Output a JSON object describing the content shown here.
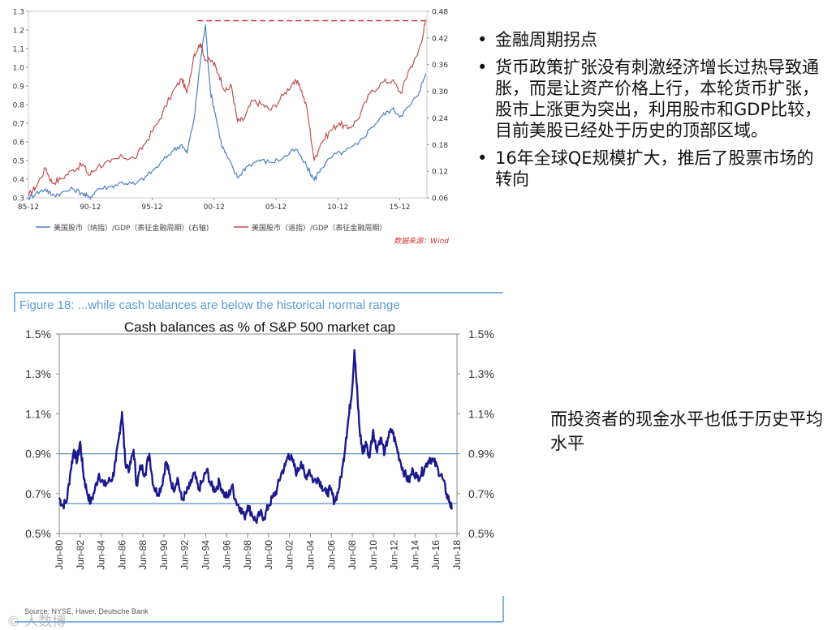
{
  "bullets": [
    "金融周期拐点",
    "货币政策扩张没有刺激经济增长过热导致通胀，而是让资产价格上行，本轮货币扩张，股市上涨更为突出，利用股市和GDP比较，目前美股已经处于历史的顶部区域。",
    "16年全球QE规模扩大，推后了股票市场的转向"
  ],
  "note": "而投资者的现金水平也低于历史平均水平",
  "watermark": "© 人数博",
  "chart_data": [
    {
      "type": "line",
      "title": "",
      "x_ticks": [
        "85-12",
        "90-12",
        "95-12",
        "00-12",
        "05-12",
        "10-12",
        "15-12"
      ],
      "left_axis": {
        "ticks": [
          "0.3",
          "0.4",
          "0.5",
          "0.6",
          "0.7",
          "0.8",
          "0.9",
          "1.0",
          "1.1",
          "1.2",
          "1.3"
        ],
        "ylim": [
          0.3,
          1.3
        ]
      },
      "right_axis": {
        "ticks": [
          "0.06",
          "0.12",
          "0.18",
          "0.24",
          "0.30",
          "0.36",
          "0.42",
          "0.48"
        ],
        "ylim": [
          0.06,
          0.48
        ]
      },
      "legend": [
        "美国股市（纳指）/GDP（表征金融周期）(右轴)",
        "美国股市（道指）/GDP（表征金融周期）"
      ],
      "legend_position": "bottom",
      "source": "数据来源：Wind",
      "reference_line": {
        "axis": "left",
        "value": 1.25,
        "style": "dashed",
        "color": "#d0312d"
      },
      "colors": {
        "nasdaq": "#4a7fc1",
        "dow": "#c0504d"
      },
      "series": [
        {
          "legend_index": 1,
          "color_key": "dow",
          "axis": "left",
          "points": [
            [
              1985.9,
              0.31
            ],
            [
              1986.5,
              0.36
            ],
            [
              1987.3,
              0.46
            ],
            [
              1987.8,
              0.38
            ],
            [
              1988.5,
              0.4
            ],
            [
              1989.5,
              0.45
            ],
            [
              1990.3,
              0.48
            ],
            [
              1990.8,
              0.42
            ],
            [
              1991.5,
              0.47
            ],
            [
              1992.5,
              0.49
            ],
            [
              1993.5,
              0.52
            ],
            [
              1994.5,
              0.51
            ],
            [
              1995.5,
              0.61
            ],
            [
              1996.5,
              0.72
            ],
            [
              1997.5,
              0.86
            ],
            [
              1998.3,
              0.94
            ],
            [
              1998.7,
              0.86
            ],
            [
              1999.3,
              1.07
            ],
            [
              1999.8,
              1.13
            ],
            [
              2000.2,
              1.04
            ],
            [
              2000.8,
              1.03
            ],
            [
              2001.3,
              0.96
            ],
            [
              2001.8,
              0.87
            ],
            [
              2002.3,
              0.9
            ],
            [
              2002.8,
              0.71
            ],
            [
              2003.3,
              0.72
            ],
            [
              2004.0,
              0.82
            ],
            [
              2004.8,
              0.8
            ],
            [
              2005.5,
              0.77
            ],
            [
              2006.5,
              0.85
            ],
            [
              2007.3,
              0.92
            ],
            [
              2007.8,
              0.91
            ],
            [
              2008.4,
              0.78
            ],
            [
              2009.0,
              0.5
            ],
            [
              2009.5,
              0.59
            ],
            [
              2010.3,
              0.66
            ],
            [
              2011.0,
              0.7
            ],
            [
              2011.7,
              0.67
            ],
            [
              2012.5,
              0.72
            ],
            [
              2013.5,
              0.86
            ],
            [
              2014.5,
              0.92
            ],
            [
              2015.3,
              0.93
            ],
            [
              2016.0,
              0.86
            ],
            [
              2016.6,
              0.98
            ],
            [
              2017.3,
              1.06
            ],
            [
              2017.8,
              1.18
            ],
            [
              2018.0,
              1.25
            ]
          ]
        },
        {
          "legend_index": 0,
          "color_key": "nasdaq",
          "axis": "right",
          "points": [
            [
              1985.9,
              0.06
            ],
            [
              1986.5,
              0.07
            ],
            [
              1987.3,
              0.08
            ],
            [
              1987.8,
              0.066
            ],
            [
              1988.5,
              0.07
            ],
            [
              1989.5,
              0.08
            ],
            [
              1990.3,
              0.07
            ],
            [
              1990.8,
              0.06
            ],
            [
              1991.5,
              0.08
            ],
            [
              1992.5,
              0.085
            ],
            [
              1993.5,
              0.095
            ],
            [
              1994.5,
              0.09
            ],
            [
              1995.5,
              0.11
            ],
            [
              1996.5,
              0.135
            ],
            [
              1997.5,
              0.165
            ],
            [
              1998.3,
              0.18
            ],
            [
              1998.7,
              0.16
            ],
            [
              1999.3,
              0.24
            ],
            [
              1999.8,
              0.37
            ],
            [
              2000.2,
              0.45
            ],
            [
              2000.6,
              0.3
            ],
            [
              2001.0,
              0.25
            ],
            [
              2001.5,
              0.18
            ],
            [
              2002.0,
              0.15
            ],
            [
              2002.8,
              0.105
            ],
            [
              2003.5,
              0.13
            ],
            [
              2004.5,
              0.145
            ],
            [
              2005.5,
              0.14
            ],
            [
              2006.5,
              0.15
            ],
            [
              2007.5,
              0.17
            ],
            [
              2008.4,
              0.13
            ],
            [
              2009.0,
              0.1
            ],
            [
              2009.5,
              0.125
            ],
            [
              2010.5,
              0.155
            ],
            [
              2011.5,
              0.165
            ],
            [
              2012.5,
              0.18
            ],
            [
              2013.5,
              0.215
            ],
            [
              2014.5,
              0.245
            ],
            [
              2015.3,
              0.26
            ],
            [
              2016.0,
              0.245
            ],
            [
              2016.8,
              0.27
            ],
            [
              2017.5,
              0.3
            ],
            [
              2018.0,
              0.34
            ]
          ]
        }
      ]
    },
    {
      "type": "line",
      "figure_label": "Figure 18: ...while cash balances are below the historical normal range",
      "title": "Cash balances as % of S&P 500 market cap",
      "y_ticks": [
        "1.5%",
        "1.3%",
        "1.1%",
        "0.9%",
        "0.7%",
        "0.5%"
      ],
      "ylim": [
        0.5,
        1.5
      ],
      "x_ticks": [
        "Jun-80",
        "Jun-82",
        "Jun-84",
        "Jun-86",
        "Jun-88",
        "Jun-90",
        "Jun-92",
        "Jun-94",
        "Jun-96",
        "Jun-98",
        "Jun-00",
        "Jun-02",
        "Jun-04",
        "Jun-06",
        "Jun-08",
        "Jun-10",
        "Jun-12",
        "Jun-14",
        "Jun-16",
        "Jun-18"
      ],
      "xlim": [
        1980.5,
        2018.5
      ],
      "reference_lines": [
        0.9,
        0.65
      ],
      "source": "Source: NYSE, Haver, Deutsche Bank",
      "colors": {
        "series": "#1a1a8c",
        "ref": "#5b8fc7",
        "frame": "#5b9bd5"
      },
      "series": [
        {
          "points": [
            [
              1980.5,
              0.68
            ],
            [
              1980.8,
              0.64
            ],
            [
              1981.2,
              0.66
            ],
            [
              1981.6,
              0.82
            ],
            [
              1981.9,
              0.92
            ],
            [
              1982.2,
              0.86
            ],
            [
              1982.5,
              0.96
            ],
            [
              1982.8,
              0.8
            ],
            [
              1983.1,
              0.72
            ],
            [
              1983.5,
              0.65
            ],
            [
              1983.9,
              0.72
            ],
            [
              1984.3,
              0.8
            ],
            [
              1984.8,
              0.74
            ],
            [
              1985.2,
              0.76
            ],
            [
              1985.6,
              0.78
            ],
            [
              1985.9,
              0.86
            ],
            [
              1986.2,
              0.98
            ],
            [
              1986.5,
              1.11
            ],
            [
              1986.8,
              0.86
            ],
            [
              1987.2,
              0.82
            ],
            [
              1987.6,
              0.92
            ],
            [
              1987.9,
              0.74
            ],
            [
              1988.3,
              0.84
            ],
            [
              1988.7,
              0.8
            ],
            [
              1989.1,
              0.9
            ],
            [
              1989.5,
              0.74
            ],
            [
              1989.9,
              0.7
            ],
            [
              1990.3,
              0.74
            ],
            [
              1990.7,
              0.86
            ],
            [
              1991.0,
              0.8
            ],
            [
              1991.4,
              0.72
            ],
            [
              1991.8,
              0.78
            ],
            [
              1992.2,
              0.67
            ],
            [
              1992.6,
              0.7
            ],
            [
              1993.0,
              0.74
            ],
            [
              1993.4,
              0.8
            ],
            [
              1993.8,
              0.72
            ],
            [
              1994.2,
              0.76
            ],
            [
              1994.6,
              0.82
            ],
            [
              1995.0,
              0.74
            ],
            [
              1995.4,
              0.72
            ],
            [
              1995.8,
              0.76
            ],
            [
              1996.2,
              0.7
            ],
            [
              1996.6,
              0.68
            ],
            [
              1997.0,
              0.74
            ],
            [
              1997.4,
              0.66
            ],
            [
              1997.8,
              0.63
            ],
            [
              1998.2,
              0.58
            ],
            [
              1998.5,
              0.64
            ],
            [
              1998.9,
              0.6
            ],
            [
              1999.3,
              0.56
            ],
            [
              1999.7,
              0.6
            ],
            [
              2000.1,
              0.58
            ],
            [
              2000.5,
              0.64
            ],
            [
              2000.9,
              0.68
            ],
            [
              2001.3,
              0.72
            ],
            [
              2001.7,
              0.8
            ],
            [
              2002.1,
              0.84
            ],
            [
              2002.4,
              0.9
            ],
            [
              2002.8,
              0.86
            ],
            [
              2003.2,
              0.8
            ],
            [
              2003.6,
              0.86
            ],
            [
              2004.0,
              0.78
            ],
            [
              2004.4,
              0.82
            ],
            [
              2004.8,
              0.76
            ],
            [
              2005.2,
              0.78
            ],
            [
              2005.6,
              0.74
            ],
            [
              2006.0,
              0.7
            ],
            [
              2006.4,
              0.72
            ],
            [
              2006.8,
              0.66
            ],
            [
              2007.2,
              0.72
            ],
            [
              2007.6,
              0.84
            ],
            [
              2007.9,
              0.98
            ],
            [
              2008.2,
              1.1
            ],
            [
              2008.5,
              1.24
            ],
            [
              2008.7,
              1.42
            ],
            [
              2008.9,
              1.26
            ],
            [
              2009.2,
              1.02
            ],
            [
              2009.5,
              0.9
            ],
            [
              2009.8,
              0.96
            ],
            [
              2010.1,
              0.88
            ],
            [
              2010.5,
              1.02
            ],
            [
              2010.8,
              0.92
            ],
            [
              2011.2,
              0.98
            ],
            [
              2011.6,
              0.9
            ],
            [
              2011.9,
              0.98
            ],
            [
              2012.3,
              1.02
            ],
            [
              2012.7,
              0.94
            ],
            [
              2013.1,
              0.86
            ],
            [
              2013.5,
              0.8
            ],
            [
              2013.9,
              0.76
            ],
            [
              2014.3,
              0.82
            ],
            [
              2014.7,
              0.78
            ],
            [
              2015.1,
              0.8
            ],
            [
              2015.5,
              0.84
            ],
            [
              2015.9,
              0.88
            ],
            [
              2016.3,
              0.86
            ],
            [
              2016.7,
              0.82
            ],
            [
              2017.1,
              0.78
            ],
            [
              2017.5,
              0.7
            ],
            [
              2017.8,
              0.66
            ],
            [
              2018.0,
              0.62
            ]
          ]
        }
      ]
    }
  ]
}
